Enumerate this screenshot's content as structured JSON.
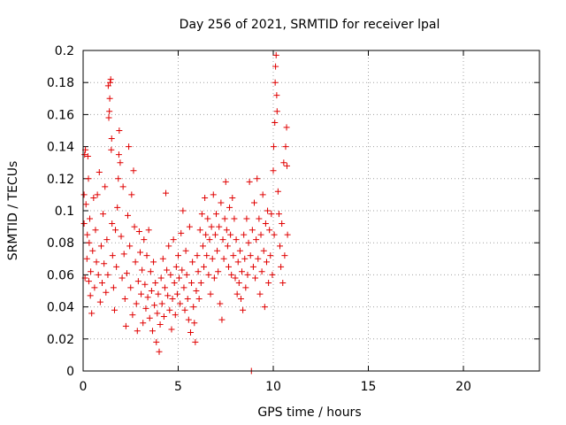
{
  "chart_data": {
    "type": "scatter",
    "title": "Day 256 of 2021, SRMTID for receiver lpal",
    "xlabel": "GPS time / hours",
    "ylabel": "SRMTID / TECUs",
    "xlim": [
      0,
      24
    ],
    "ylim": [
      0,
      0.2
    ],
    "x_ticks": [
      0,
      5,
      10,
      15,
      20
    ],
    "y_ticks": [
      0,
      0.02,
      0.04,
      0.06,
      0.08,
      0.1,
      0.12,
      0.14,
      0.16,
      0.18,
      0.2
    ],
    "grid": true,
    "marker": "plus",
    "color": "#e00000",
    "points": [
      [
        0.05,
        0.11
      ],
      [
        0.05,
        0.092
      ],
      [
        0.08,
        0.135
      ],
      [
        0.1,
        0.058
      ],
      [
        0.12,
        0.138
      ],
      [
        0.15,
        0.104
      ],
      [
        0.2,
        0.07
      ],
      [
        0.22,
        0.085
      ],
      [
        0.25,
        0.134
      ],
      [
        0.28,
        0.12
      ],
      [
        0.3,
        0.056
      ],
      [
        0.32,
        0.08
      ],
      [
        0.35,
        0.095
      ],
      [
        0.38,
        0.047
      ],
      [
        0.4,
        0.062
      ],
      [
        0.45,
        0.036
      ],
      [
        0.5,
        0.075
      ],
      [
        0.55,
        0.108
      ],
      [
        0.6,
        0.052
      ],
      [
        0.65,
        0.088
      ],
      [
        0.7,
        0.068
      ],
      [
        0.75,
        0.11
      ],
      [
        0.8,
        0.06
      ],
      [
        0.85,
        0.124
      ],
      [
        0.9,
        0.043
      ],
      [
        0.95,
        0.078
      ],
      [
        1.0,
        0.055
      ],
      [
        1.05,
        0.098
      ],
      [
        1.1,
        0.067
      ],
      [
        1.15,
        0.115
      ],
      [
        1.2,
        0.049
      ],
      [
        1.25,
        0.082
      ],
      [
        1.3,
        0.06
      ],
      [
        1.32,
        0.178
      ],
      [
        1.35,
        0.158
      ],
      [
        1.38,
        0.162
      ],
      [
        1.4,
        0.17
      ],
      [
        1.42,
        0.18
      ],
      [
        1.45,
        0.182
      ],
      [
        1.48,
        0.138
      ],
      [
        1.5,
        0.145
      ],
      [
        1.52,
        0.092
      ],
      [
        1.55,
        0.072
      ],
      [
        1.6,
        0.052
      ],
      [
        1.65,
        0.038
      ],
      [
        1.7,
        0.088
      ],
      [
        1.75,
        0.065
      ],
      [
        1.8,
        0.102
      ],
      [
        1.85,
        0.12
      ],
      [
        1.88,
        0.135
      ],
      [
        1.9,
        0.15
      ],
      [
        1.95,
        0.13
      ],
      [
        2.0,
        0.084
      ],
      [
        2.05,
        0.058
      ],
      [
        2.1,
        0.115
      ],
      [
        2.15,
        0.073
      ],
      [
        2.2,
        0.045
      ],
      [
        2.25,
        0.028
      ],
      [
        2.3,
        0.061
      ],
      [
        2.35,
        0.097
      ],
      [
        2.4,
        0.14
      ],
      [
        2.45,
        0.078
      ],
      [
        2.5,
        0.052
      ],
      [
        2.55,
        0.11
      ],
      [
        2.6,
        0.035
      ],
      [
        2.65,
        0.125
      ],
      [
        2.7,
        0.09
      ],
      [
        2.75,
        0.068
      ],
      [
        2.8,
        0.042
      ],
      [
        2.85,
        0.025
      ],
      [
        2.9,
        0.056
      ],
      [
        2.95,
        0.087
      ],
      [
        3.0,
        0.074
      ],
      [
        3.05,
        0.048
      ],
      [
        3.1,
        0.063
      ],
      [
        3.15,
        0.03
      ],
      [
        3.2,
        0.082
      ],
      [
        3.25,
        0.054
      ],
      [
        3.3,
        0.039
      ],
      [
        3.35,
        0.072
      ],
      [
        3.4,
        0.046
      ],
      [
        3.45,
        0.088
      ],
      [
        3.5,
        0.033
      ],
      [
        3.55,
        0.062
      ],
      [
        3.6,
        0.05
      ],
      [
        3.65,
        0.025
      ],
      [
        3.7,
        0.068
      ],
      [
        3.75,
        0.041
      ],
      [
        3.8,
        0.055
      ],
      [
        3.85,
        0.018
      ],
      [
        3.9,
        0.036
      ],
      [
        3.95,
        0.048
      ],
      [
        4.0,
        0.012
      ],
      [
        4.05,
        0.029
      ],
      [
        4.1,
        0.058
      ],
      [
        4.15,
        0.042
      ],
      [
        4.2,
        0.07
      ],
      [
        4.25,
        0.034
      ],
      [
        4.3,
        0.052
      ],
      [
        4.35,
        0.111
      ],
      [
        4.4,
        0.063
      ],
      [
        4.45,
        0.047
      ],
      [
        4.5,
        0.078
      ],
      [
        4.55,
        0.038
      ],
      [
        4.6,
        0.06
      ],
      [
        4.65,
        0.026
      ],
      [
        4.7,
        0.045
      ],
      [
        4.75,
        0.082
      ],
      [
        4.8,
        0.055
      ],
      [
        4.85,
        0.035
      ],
      [
        4.9,
        0.065
      ],
      [
        4.95,
        0.048
      ],
      [
        5.0,
        0.072
      ],
      [
        5.05,
        0.058
      ],
      [
        5.1,
        0.042
      ],
      [
        5.15,
        0.086
      ],
      [
        5.2,
        0.063
      ],
      [
        5.25,
        0.1
      ],
      [
        5.3,
        0.052
      ],
      [
        5.35,
        0.038
      ],
      [
        5.4,
        0.075
      ],
      [
        5.45,
        0.06
      ],
      [
        5.5,
        0.045
      ],
      [
        5.55,
        0.032
      ],
      [
        5.6,
        0.09
      ],
      [
        5.65,
        0.024
      ],
      [
        5.7,
        0.055
      ],
      [
        5.75,
        0.068
      ],
      [
        5.8,
        0.04
      ],
      [
        5.85,
        0.03
      ],
      [
        5.9,
        0.018
      ],
      [
        5.95,
        0.05
      ],
      [
        6.0,
        0.072
      ],
      [
        6.05,
        0.062
      ],
      [
        6.1,
        0.045
      ],
      [
        6.15,
        0.088
      ],
      [
        6.2,
        0.055
      ],
      [
        6.25,
        0.098
      ],
      [
        6.3,
        0.078
      ],
      [
        6.35,
        0.065
      ],
      [
        6.4,
        0.108
      ],
      [
        6.45,
        0.085
      ],
      [
        6.5,
        0.072
      ],
      [
        6.55,
        0.095
      ],
      [
        6.6,
        0.06
      ],
      [
        6.65,
        0.082
      ],
      [
        6.7,
        0.048
      ],
      [
        6.75,
        0.09
      ],
      [
        6.8,
        0.07
      ],
      [
        6.85,
        0.11
      ],
      [
        6.9,
        0.058
      ],
      [
        6.95,
        0.085
      ],
      [
        7.0,
        0.098
      ],
      [
        7.05,
        0.075
      ],
      [
        7.1,
        0.062
      ],
      [
        7.15,
        0.09
      ],
      [
        7.2,
        0.042
      ],
      [
        7.25,
        0.105
      ],
      [
        7.3,
        0.032
      ],
      [
        7.35,
        0.082
      ],
      [
        7.4,
        0.07
      ],
      [
        7.45,
        0.095
      ],
      [
        7.5,
        0.118
      ],
      [
        7.55,
        0.088
      ],
      [
        7.6,
        0.078
      ],
      [
        7.65,
        0.065
      ],
      [
        7.7,
        0.102
      ],
      [
        7.75,
        0.085
      ],
      [
        7.8,
        0.06
      ],
      [
        7.85,
        0.108
      ],
      [
        7.9,
        0.072
      ],
      [
        7.95,
        0.095
      ],
      [
        8.0,
        0.058
      ],
      [
        8.05,
        0.082
      ],
      [
        8.1,
        0.048
      ],
      [
        8.15,
        0.068
      ],
      [
        8.2,
        0.055
      ],
      [
        8.25,
        0.075
      ],
      [
        8.3,
        0.045
      ],
      [
        8.35,
        0.062
      ],
      [
        8.4,
        0.038
      ],
      [
        8.45,
        0.085
      ],
      [
        8.5,
        0.07
      ],
      [
        8.55,
        0.052
      ],
      [
        8.6,
        0.095
      ],
      [
        8.65,
        0.06
      ],
      [
        8.7,
        0.08
      ],
      [
        8.75,
        0.118
      ],
      [
        8.8,
        0.072
      ],
      [
        8.85,
        0.0
      ],
      [
        8.9,
        0.088
      ],
      [
        8.95,
        0.065
      ],
      [
        9.0,
        0.105
      ],
      [
        9.05,
        0.058
      ],
      [
        9.1,
        0.082
      ],
      [
        9.15,
        0.12
      ],
      [
        9.2,
        0.07
      ],
      [
        9.25,
        0.095
      ],
      [
        9.3,
        0.048
      ],
      [
        9.35,
        0.085
      ],
      [
        9.4,
        0.062
      ],
      [
        9.45,
        0.11
      ],
      [
        9.5,
        0.075
      ],
      [
        9.55,
        0.04
      ],
      [
        9.6,
        0.092
      ],
      [
        9.65,
        0.068
      ],
      [
        9.7,
        0.1
      ],
      [
        9.75,
        0.055
      ],
      [
        9.8,
        0.088
      ],
      [
        9.85,
        0.072
      ],
      [
        9.9,
        0.098
      ],
      [
        9.95,
        0.06
      ],
      [
        10.0,
        0.125
      ],
      [
        10.02,
        0.14
      ],
      [
        10.05,
        0.085
      ],
      [
        10.08,
        0.155
      ],
      [
        10.1,
        0.18
      ],
      [
        10.12,
        0.19
      ],
      [
        10.15,
        0.197
      ],
      [
        10.18,
        0.172
      ],
      [
        10.2,
        0.162
      ],
      [
        10.25,
        0.112
      ],
      [
        10.3,
        0.098
      ],
      [
        10.35,
        0.078
      ],
      [
        10.4,
        0.065
      ],
      [
        10.45,
        0.092
      ],
      [
        10.5,
        0.055
      ],
      [
        10.55,
        0.13
      ],
      [
        10.6,
        0.072
      ],
      [
        10.65,
        0.14
      ],
      [
        10.7,
        0.152
      ],
      [
        10.72,
        0.128
      ],
      [
        10.75,
        0.085
      ]
    ]
  }
}
